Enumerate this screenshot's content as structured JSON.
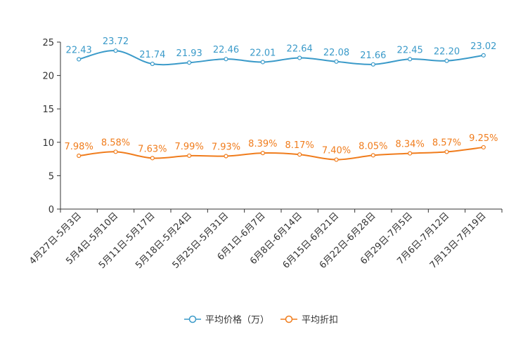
{
  "chart_data": {
    "type": "line",
    "categories": [
      "4月27日-5月3日",
      "5月4日-5月10日",
      "5月11日-5月17日",
      "5月18日-5月24日",
      "5月25日-5月31日",
      "6月1日-6月7日",
      "6月8日-6月14日",
      "6月15日-6月21日",
      "6月22日-6月28日",
      "6月29日-7月5日",
      "7月6日-7月12日",
      "7月13日-7月19日"
    ],
    "ylim": [
      0,
      25
    ],
    "yticks": [
      0,
      5,
      10,
      15,
      20,
      25
    ],
    "series": [
      {
        "name": "平均价格（万）",
        "color": "#3a9ac9",
        "values": [
          22.43,
          23.72,
          21.74,
          21.93,
          22.46,
          22.01,
          22.64,
          22.08,
          21.66,
          22.45,
          22.2,
          23.02
        ],
        "labels": [
          "22.43",
          "23.72",
          "21.74",
          "21.93",
          "22.46",
          "22.01",
          "22.64",
          "22.08",
          "21.66",
          "22.45",
          "22.20",
          "23.02"
        ]
      },
      {
        "name": "平均折扣",
        "color": "#f07c1c",
        "values": [
          7.98,
          8.58,
          7.63,
          7.99,
          7.93,
          8.39,
          8.17,
          7.4,
          8.05,
          8.34,
          8.57,
          9.25
        ],
        "labels": [
          "7.98%",
          "8.58%",
          "7.63%",
          "7.99%",
          "7.93%",
          "8.39%",
          "8.17%",
          "7.40%",
          "8.05%",
          "8.34%",
          "8.57%",
          "9.25%"
        ]
      }
    ],
    "title": "",
    "xlabel": "",
    "ylabel": "",
    "legend_position": "bottom-center",
    "grid": false
  }
}
